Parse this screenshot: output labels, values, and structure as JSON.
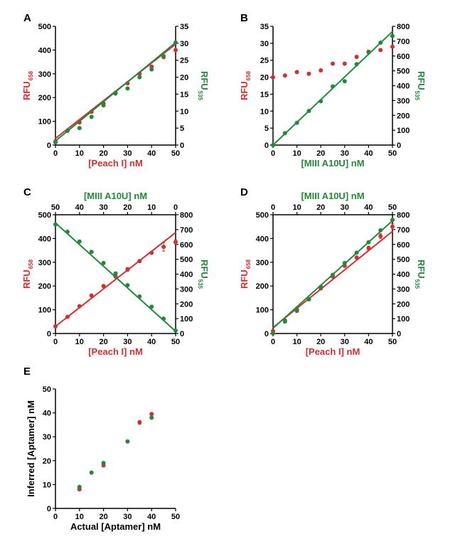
{
  "colors": {
    "red": "#d32f2f",
    "green": "#218a3a",
    "axis": "#000000"
  },
  "panels": [
    {
      "id": "A",
      "label": "A",
      "left_axis": {
        "label": "RFU",
        "sub": "658",
        "color": "red",
        "ticks": [
          0,
          100,
          200,
          300,
          400,
          500
        ],
        "range": [
          0,
          500
        ]
      },
      "right_axis": {
        "label": "RFU",
        "sub": "535",
        "color": "green",
        "ticks": [
          0,
          5,
          10,
          15,
          20,
          25,
          30,
          35
        ],
        "range": [
          0,
          35
        ]
      },
      "bottom_axis": {
        "label": "[Peach I] nM",
        "color": "red",
        "ticks": [
          0,
          10,
          20,
          30,
          40,
          50
        ],
        "range": [
          0,
          50
        ]
      },
      "top_axis": null
    },
    {
      "id": "B",
      "label": "B",
      "left_axis": {
        "label": "RFU",
        "sub": "658",
        "color": "red",
        "ticks": [
          0,
          5,
          10,
          15,
          20,
          25,
          30,
          35
        ],
        "range": [
          0,
          35
        ]
      },
      "right_axis": {
        "label": "RFU",
        "sub": "535",
        "color": "green",
        "ticks": [
          0,
          100,
          200,
          300,
          400,
          500,
          600,
          700,
          800
        ],
        "range": [
          0,
          800
        ]
      },
      "bottom_axis": {
        "label": "[MIII A10U] nM",
        "color": "green",
        "ticks": [
          0,
          10,
          20,
          30,
          40,
          50
        ],
        "range": [
          0,
          50
        ]
      },
      "top_axis": null
    },
    {
      "id": "C",
      "label": "C",
      "left_axis": {
        "label": "RFU",
        "sub": "658",
        "color": "red",
        "ticks": [
          0,
          100,
          200,
          300,
          400,
          500
        ],
        "range": [
          0,
          500
        ]
      },
      "right_axis": {
        "label": "RFU",
        "sub": "535",
        "color": "green",
        "ticks": [
          0,
          100,
          200,
          300,
          400,
          500,
          600,
          700,
          800
        ],
        "range": [
          0,
          800
        ]
      },
      "bottom_axis": {
        "label": "[Peach I] nM",
        "color": "red",
        "ticks": [
          0,
          10,
          20,
          30,
          40,
          50
        ],
        "range": [
          0,
          50
        ]
      },
      "top_axis": {
        "label": "[MIII A10U] nM",
        "color": "green",
        "ticks": [
          50,
          40,
          30,
          20,
          10,
          0
        ],
        "range": [
          50,
          0
        ]
      }
    },
    {
      "id": "D",
      "label": "D",
      "left_axis": {
        "label": "RFU",
        "sub": "658",
        "color": "red",
        "ticks": [
          0,
          100,
          200,
          300,
          400,
          500
        ],
        "range": [
          0,
          500
        ]
      },
      "right_axis": {
        "label": "RFU",
        "sub": "535",
        "color": "green",
        "ticks": [
          0,
          100,
          200,
          300,
          400,
          500,
          600,
          700,
          800
        ],
        "range": [
          0,
          800
        ]
      },
      "bottom_axis": {
        "label": "[Peach I] nM",
        "color": "red",
        "ticks": [
          0,
          10,
          20,
          30,
          40,
          50
        ],
        "range": [
          0,
          50
        ]
      },
      "top_axis": {
        "label": "[MIII A10U] nM",
        "color": "green",
        "ticks": [
          0,
          10,
          20,
          30,
          40,
          50
        ],
        "range": [
          0,
          50
        ]
      }
    },
    {
      "id": "E",
      "label": "E",
      "left_axis": {
        "label": "Inferred [Aptamer] nM",
        "sub": "",
        "color": "black",
        "ticks": [
          0,
          10,
          20,
          30,
          40,
          50
        ],
        "range": [
          0,
          50
        ]
      },
      "right_axis": null,
      "bottom_axis": {
        "label": "Actual [Aptamer] nM",
        "color": "black",
        "ticks": [
          0,
          10,
          20,
          30,
          40,
          50
        ],
        "range": [
          0,
          50
        ]
      },
      "top_axis": null
    }
  ],
  "chart_data": [
    {
      "panel": "A",
      "type": "scatter",
      "series": [
        {
          "color": "red",
          "axis": "left",
          "x": [
            0,
            5,
            10,
            15,
            20,
            25,
            30,
            35,
            40,
            45,
            50
          ],
          "y": [
            15,
            60,
            95,
            140,
            175,
            220,
            260,
            300,
            330,
            370,
            400
          ],
          "fit": [
            [
              0,
              28
            ],
            [
              50,
              425
            ]
          ]
        },
        {
          "color": "green",
          "axis": "right",
          "x": [
            0,
            5,
            10,
            15,
            20,
            25,
            30,
            35,
            40,
            45,
            50
          ],
          "y": [
            0.8,
            4.3,
            5,
            8.3,
            11.7,
            15.2,
            16.7,
            20,
            22.3,
            26.2,
            30.2
          ],
          "fit": [
            [
              0,
              1.2
            ],
            [
              50,
              30.2
            ]
          ]
        }
      ]
    },
    {
      "panel": "B",
      "type": "scatter",
      "series": [
        {
          "color": "red",
          "axis": "left",
          "x": [
            0,
            5,
            10,
            15,
            20,
            25,
            30,
            35,
            40,
            45,
            50
          ],
          "y": [
            20,
            20.5,
            21.5,
            21,
            22,
            24,
            24,
            26,
            27.5,
            28,
            29
          ],
          "fit": null
        },
        {
          "color": "green",
          "axis": "right",
          "x": [
            0,
            5,
            10,
            15,
            20,
            25,
            30,
            35,
            40,
            45,
            50
          ],
          "y": [
            0,
            80,
            150,
            230,
            295,
            395,
            430,
            545,
            625,
            690,
            735
          ],
          "fit": [
            [
              0,
              0
            ],
            [
              50,
              765
            ]
          ]
        }
      ]
    },
    {
      "panel": "C",
      "type": "scatter",
      "series": [
        {
          "color": "red",
          "axis": "left",
          "x": [
            0,
            5,
            10,
            15,
            20,
            25,
            30,
            35,
            40,
            45,
            50
          ],
          "y": [
            30,
            70,
            115,
            160,
            200,
            240,
            270,
            305,
            340,
            365,
            385
          ],
          "err": [
            5,
            4,
            4,
            4,
            4,
            5,
            8,
            6,
            6,
            18,
            10
          ],
          "fit": [
            [
              0,
              30
            ],
            [
              50,
              425
            ]
          ]
        },
        {
          "color": "green",
          "axis": "right",
          "x": [
            0,
            5,
            10,
            15,
            20,
            25,
            30,
            35,
            40,
            45,
            50
          ],
          "y": [
            735,
            685,
            620,
            550,
            475,
            405,
            325,
            250,
            180,
            100,
            20
          ],
          "fit": [
            [
              0,
              745
            ],
            [
              50,
              15
            ]
          ]
        }
      ]
    },
    {
      "panel": "D",
      "type": "scatter",
      "series": [
        {
          "color": "red",
          "axis": "left",
          "x": [
            0,
            5,
            10,
            15,
            20,
            25,
            30,
            35,
            40,
            45,
            50
          ],
          "y": [
            10,
            55,
            95,
            145,
            190,
            240,
            285,
            320,
            360,
            410,
            450
          ],
          "err": [
            4,
            4,
            4,
            4,
            4,
            5,
            6,
            6,
            8,
            10,
            12
          ],
          "fit": [
            [
              0,
              25
            ],
            [
              50,
              430
            ]
          ]
        },
        {
          "color": "green",
          "axis": "right",
          "x": [
            0,
            5,
            10,
            15,
            20,
            25,
            30,
            35,
            40,
            45,
            50
          ],
          "y": [
            0,
            80,
            160,
            230,
            315,
            395,
            475,
            545,
            615,
            695,
            765
          ],
          "fit": [
            [
              0,
              35
            ],
            [
              50,
              760
            ]
          ]
        }
      ]
    },
    {
      "panel": "E",
      "type": "scatter",
      "series": [
        {
          "color": "red",
          "axis": "left",
          "x": [
            10,
            20,
            35,
            40
          ],
          "y": [
            8,
            18,
            36,
            39.5
          ],
          "err": [
            0.6,
            0.6,
            0.8,
            0.6
          ],
          "fit": null
        },
        {
          "color": "green",
          "axis": "left",
          "x": [
            10,
            15,
            20,
            30,
            40
          ],
          "y": [
            9,
            15,
            19,
            28,
            38
          ],
          "err": [
            0.4,
            0.3,
            0.4,
            0.3,
            0.4
          ],
          "fit": null
        }
      ]
    }
  ]
}
